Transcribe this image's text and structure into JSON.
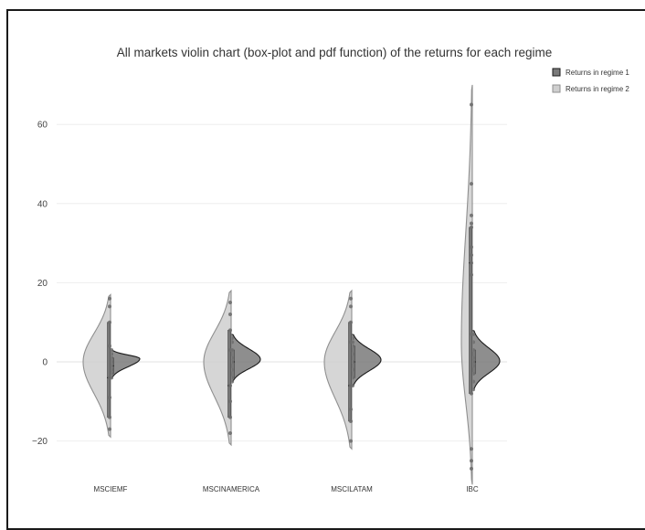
{
  "chart_data": {
    "type": "violin",
    "title": "All markets violin chart (box-plot and pdf function) of the returns for each regime",
    "xlabel": "",
    "ylabel": "",
    "ylim": [
      -30,
      70
    ],
    "yticks": [
      -20,
      0,
      20,
      40,
      60
    ],
    "ytick_labels": [
      "−20",
      "0",
      "20",
      "40",
      "60"
    ],
    "categories": [
      "MSCIEMF",
      "MSCINAMERICA",
      "MSCILATAM",
      "IBC"
    ],
    "grid": true,
    "legend_position": "top-right",
    "series": [
      {
        "name": "Returns in regime 1",
        "side": "positive",
        "color": "#7a7a7a",
        "line_color": "#1a1a1a",
        "range": [
          [
            -4,
            3
          ],
          [
            -5,
            7
          ],
          [
            -6,
            7
          ],
          [
            -7,
            8
          ]
        ],
        "mode": [
          0.8,
          0.6,
          0.5,
          0.2
        ],
        "points": [
          [
            3,
            2,
            1,
            0,
            -1,
            -2,
            -3,
            -4
          ],
          [
            6,
            5,
            3,
            1,
            0,
            -2,
            -4,
            -5
          ],
          [
            6,
            5,
            4,
            2,
            0,
            -2,
            -4,
            -6
          ],
          [
            7,
            5,
            3,
            1,
            0,
            -1,
            -3,
            -5,
            -7
          ]
        ]
      },
      {
        "name": "Returns in regime 2",
        "side": "negative",
        "color": "#cfcfcf",
        "line_color": "#8f8f8f",
        "range": [
          [
            -19,
            17
          ],
          [
            -21,
            18
          ],
          [
            -22,
            18
          ],
          [
            -31,
            70
          ]
        ],
        "mode": [
          0,
          0,
          0,
          5
        ],
        "points": [
          [
            16,
            14,
            10,
            4,
            -4,
            -9,
            -14,
            -17
          ],
          [
            15,
            12,
            8,
            3,
            -6,
            -10,
            -14,
            -18
          ],
          [
            16,
            14,
            10,
            5,
            -6,
            -12,
            -15,
            -20
          ],
          [
            65,
            45,
            37,
            35,
            34,
            29,
            27,
            25,
            22,
            7,
            -8,
            -22,
            -25,
            -27
          ]
        ]
      }
    ]
  }
}
